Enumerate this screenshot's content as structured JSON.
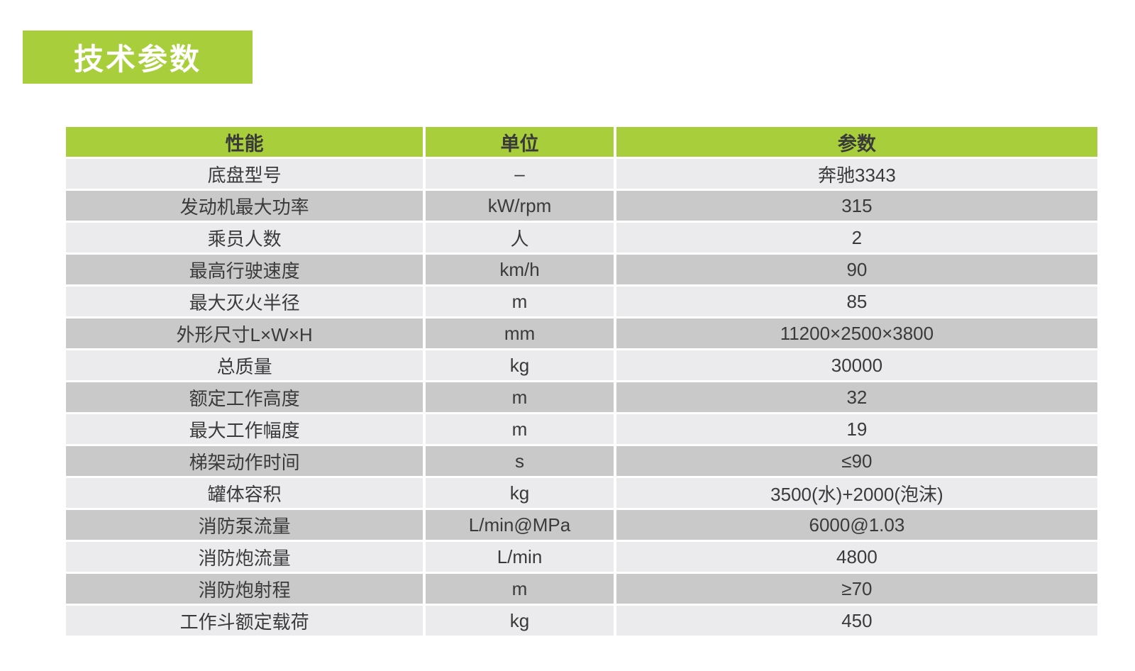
{
  "page": {
    "title": "技术参数",
    "colors": {
      "accent_green": "#a8cf3b",
      "row_light": "#ebebed",
      "row_dark": "#c9c9c9",
      "text": "#3a3a3a",
      "title_text": "#ffffff",
      "background": "#ffffff"
    }
  },
  "table": {
    "columns": [
      "性能",
      "单位",
      "参数"
    ],
    "rows": [
      [
        "底盘型号",
        "–",
        "奔驰3343"
      ],
      [
        "发动机最大功率",
        "kW/rpm",
        "315"
      ],
      [
        "乘员人数",
        "人",
        "2"
      ],
      [
        "最高行驶速度",
        "km/h",
        "90"
      ],
      [
        "最大灭火半径",
        "m",
        "85"
      ],
      [
        "外形尺寸L×W×H",
        "mm",
        "11200×2500×3800"
      ],
      [
        "总质量",
        "kg",
        "30000"
      ],
      [
        "额定工作高度",
        "m",
        "32"
      ],
      [
        "最大工作幅度",
        "m",
        "19"
      ],
      [
        "梯架动作时间",
        "s",
        "≤90"
      ],
      [
        "罐体容积",
        "kg",
        "3500(水)+2000(泡沫)"
      ],
      [
        "消防泵流量",
        "L/min@MPa",
        "6000@1.03"
      ],
      [
        "消防炮流量",
        "L/min",
        "4800"
      ],
      [
        "消防炮射程",
        "m",
        "≥70"
      ],
      [
        "工作斗额定载荷",
        "kg",
        "450"
      ]
    ]
  }
}
